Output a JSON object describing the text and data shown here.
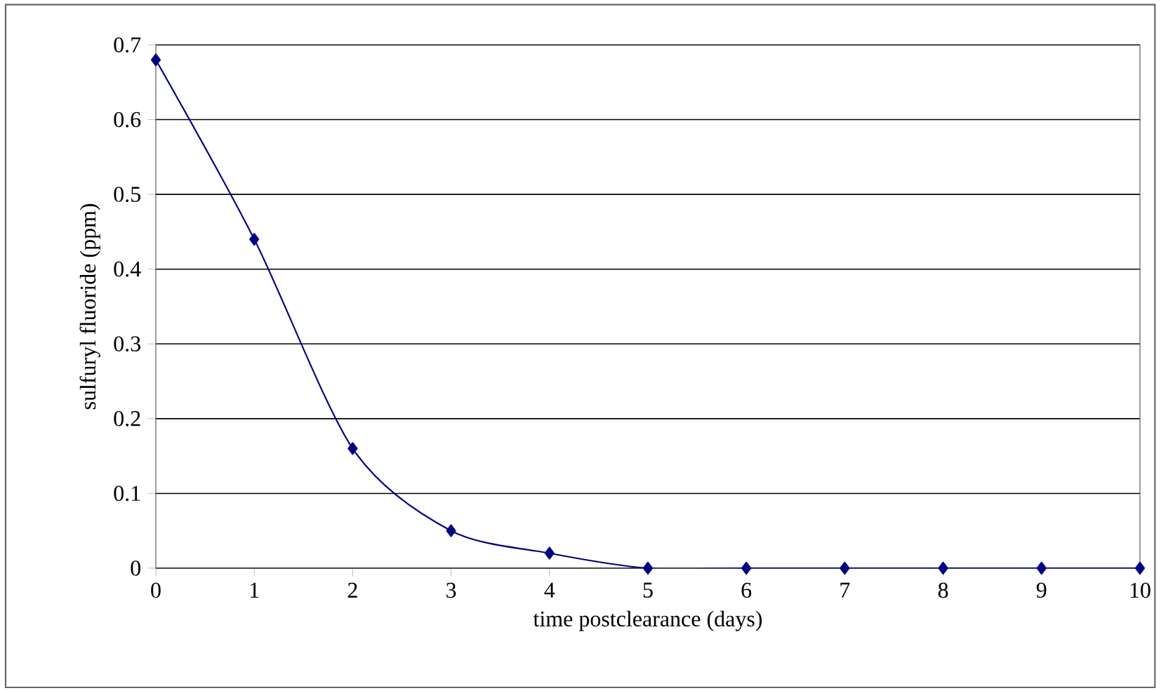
{
  "chart_data": {
    "type": "line",
    "xlabel": "time postclearance (days)",
    "ylabel": "sulfuryl fluoride (ppm)",
    "x": [
      0,
      1,
      2,
      3,
      4,
      5,
      6,
      7,
      8,
      9,
      10
    ],
    "series": [
      {
        "color": "#000080",
        "values": [
          0.68,
          0.44,
          0.16,
          0.05,
          0.02,
          0,
          0,
          0,
          0,
          0,
          0
        ]
      }
    ],
    "xlim": [
      0,
      10
    ],
    "xticks": [
      0,
      1,
      2,
      3,
      4,
      5,
      6,
      7,
      8,
      9,
      10
    ],
    "ylim": [
      0,
      0.7
    ],
    "yticks": [
      0,
      0.1,
      0.2,
      0.3,
      0.4,
      0.5,
      0.6,
      0.7
    ],
    "grid": "y",
    "marker": "diamond",
    "line_style": "solid"
  }
}
